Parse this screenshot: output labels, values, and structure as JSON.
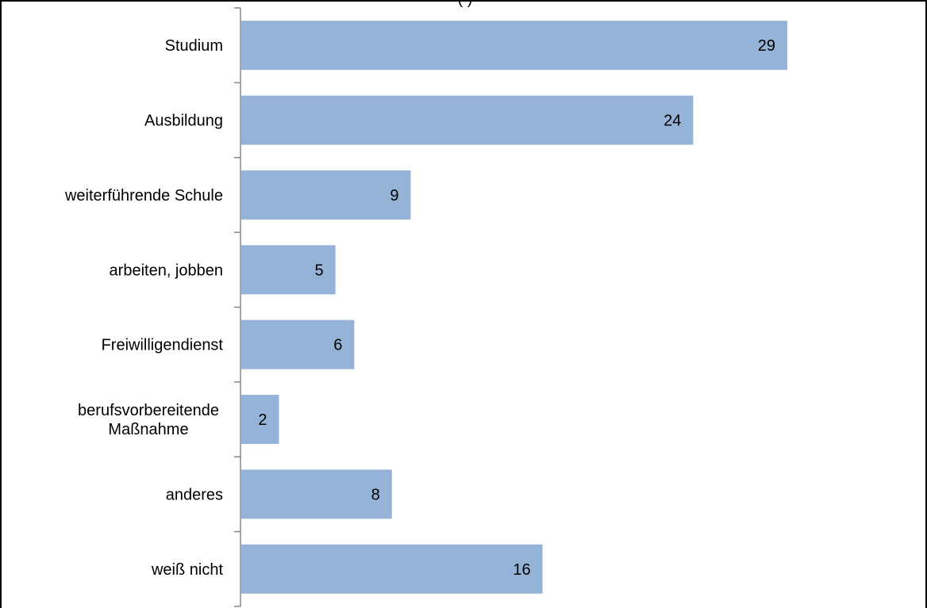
{
  "chart_data": {
    "type": "bar",
    "orientation": "horizontal",
    "title_fragment": "(                    )",
    "categories": [
      [
        "Studium"
      ],
      [
        "Ausbildung"
      ],
      [
        "weiterführende Schule"
      ],
      [
        "arbeiten, jobben"
      ],
      [
        "Freiwilligendienst"
      ],
      [
        "berufsvorbereitende",
        "Maßnahme"
      ],
      [
        "anderes"
      ],
      [
        "weiß nicht"
      ]
    ],
    "values": [
      29,
      24,
      9,
      5,
      6,
      2,
      8,
      16
    ],
    "value_labels": [
      "29",
      "24",
      "9",
      "5",
      "6",
      "2",
      "8",
      "16"
    ],
    "xlim": [
      0,
      30
    ],
    "grid": false,
    "bar_color": "#95B3D7",
    "axis_color": "#868686"
  }
}
